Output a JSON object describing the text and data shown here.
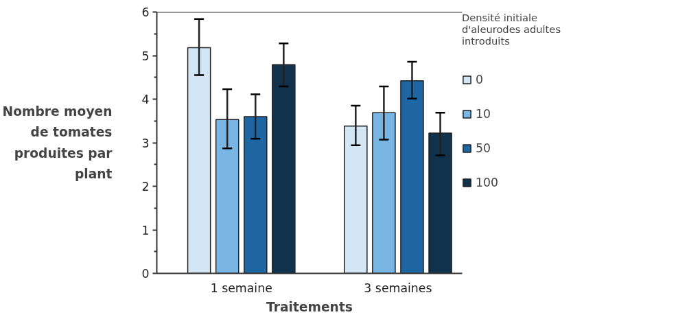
{
  "chart_data": {
    "type": "bar",
    "xlabel": "Traitements",
    "ylabel": "Nombre moyen de tomates produites par plant",
    "legend_title": "Densité initiale d'aleurodes adultes introduits",
    "categories": [
      "1 semaine",
      "3 semaines"
    ],
    "series": [
      {
        "name": "0",
        "color": "#d3e6f5",
        "values": [
          5.18,
          3.38
        ],
        "errors": [
          [
            4.55,
            5.84
          ],
          [
            2.94,
            3.85
          ]
        ]
      },
      {
        "name": "10",
        "color": "#78b5e2",
        "values": [
          3.53,
          3.69
        ],
        "errors": [
          [
            2.87,
            4.23
          ],
          [
            3.07,
            4.29
          ]
        ]
      },
      {
        "name": "50",
        "color": "#1f67a2",
        "values": [
          3.6,
          4.42
        ],
        "errors": [
          [
            3.09,
            4.11
          ],
          [
            4.01,
            4.86
          ]
        ]
      },
      {
        "name": "100",
        "color": "#11324c",
        "values": [
          4.79,
          3.22
        ],
        "errors": [
          [
            4.29,
            5.28
          ],
          [
            2.71,
            3.69
          ]
        ]
      }
    ],
    "ylim": [
      0,
      6
    ],
    "yticks": [
      0,
      {
        "value": 0.5,
        "label": null
      },
      1,
      {
        "value": 1.5,
        "label": null
      },
      2,
      {
        "value": 2.5,
        "label": null
      },
      3,
      {
        "value": 3.5,
        "label": null
      },
      4,
      {
        "value": 4.5,
        "label": null
      },
      5,
      {
        "value": 5.5,
        "label": null
      },
      6
    ],
    "grid": false,
    "legend": "right"
  }
}
